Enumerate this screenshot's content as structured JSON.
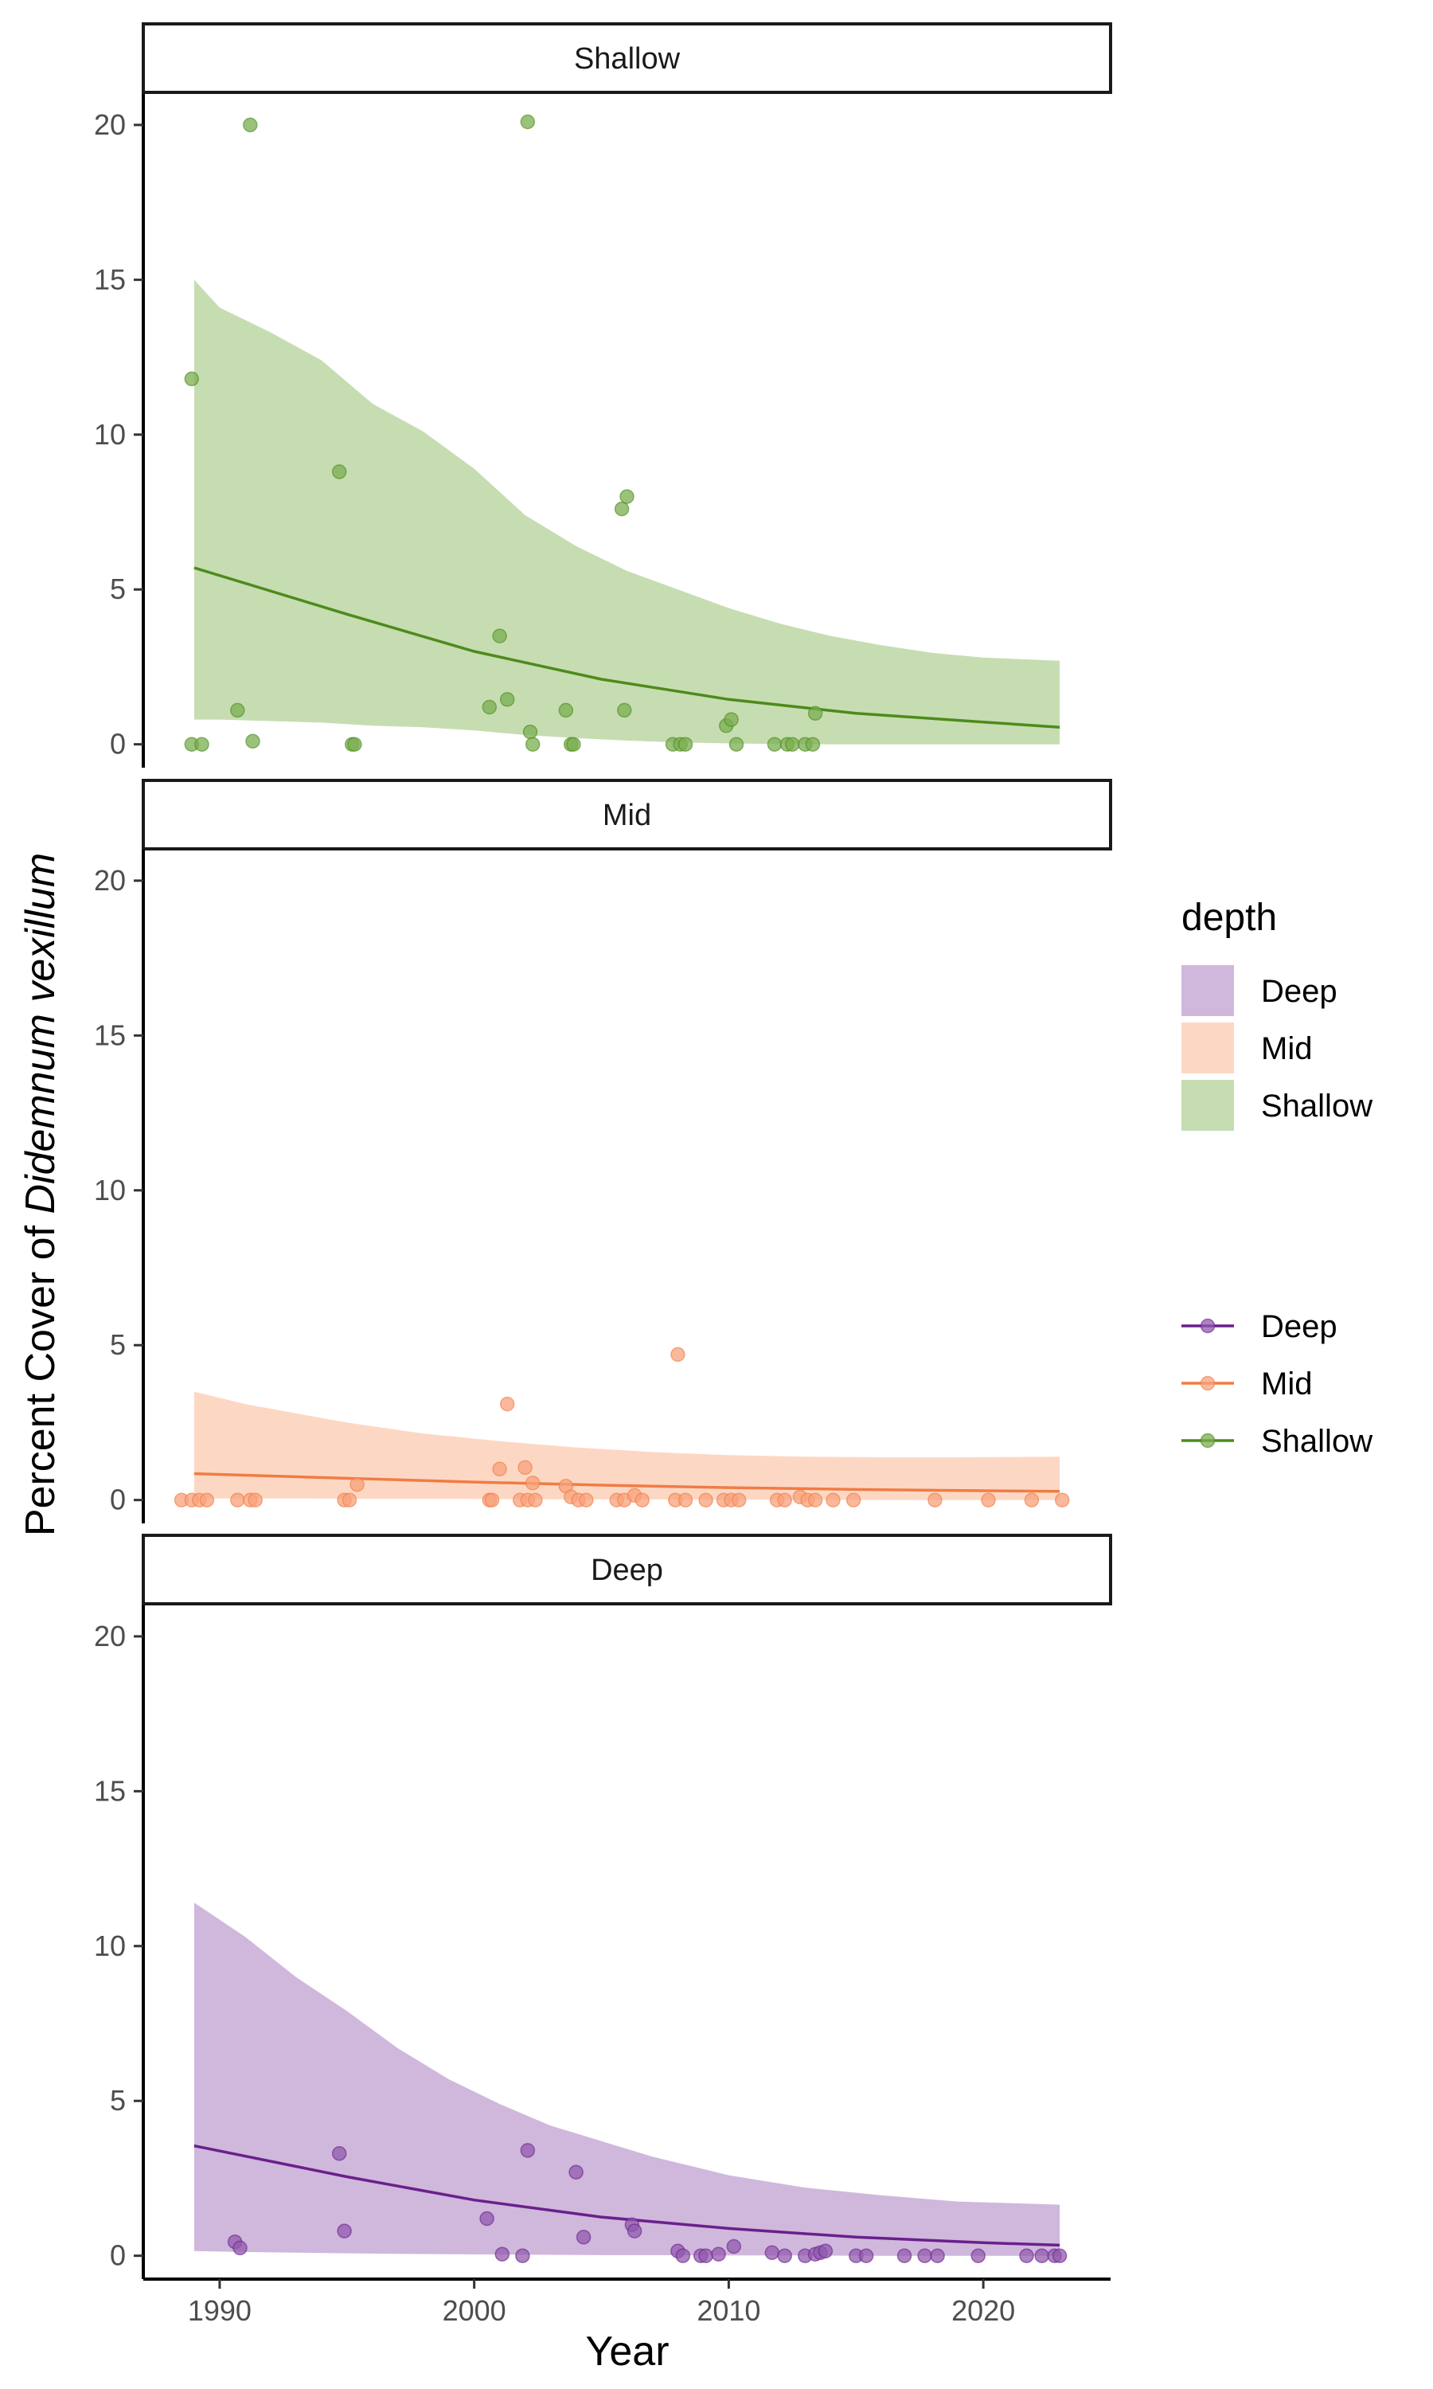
{
  "chart_data": {
    "type": "scatter",
    "xlabel": "Year",
    "ylabel_prefix": "Percent Cover of ",
    "ylabel_italic": "Didemnum vexillum",
    "x_ticks": [
      "1990",
      "2000",
      "2010",
      "2020"
    ],
    "y_ticks": [
      "0",
      "5",
      "10",
      "15",
      "20"
    ],
    "xlim": [
      1987,
      2025
    ],
    "ylim": [
      -0.6,
      21
    ],
    "colors": {
      "Shallow": {
        "line": "#4d8b1a",
        "ribbon": "#c6ddb2",
        "point": "#79ad4f"
      },
      "Mid": {
        "line": "#f07c45",
        "ribbon": "#fcd8c4",
        "point": "#f8a27b"
      },
      "Deep": {
        "line": "#6b1f8c",
        "ribbon": "#cfb8dc",
        "point": "#9159ad"
      }
    },
    "legend": {
      "title": "depth",
      "ribbon_entries": [
        "Deep",
        "Mid",
        "Shallow"
      ],
      "line_entries": [
        "Deep",
        "Mid",
        "Shallow"
      ]
    },
    "panels": [
      {
        "name": "Shallow",
        "fit": {
          "years": [
            1989,
            1995,
            2000,
            2005,
            2010,
            2015,
            2020,
            2023
          ],
          "y": [
            5.7,
            4.2,
            3.0,
            2.1,
            1.45,
            1.0,
            0.72,
            0.55
          ]
        },
        "ribbon": {
          "years": [
            1989,
            1990,
            1992,
            1994,
            1996,
            1998,
            2000,
            2002,
            2004,
            2006,
            2008,
            2010,
            2012,
            2014,
            2016,
            2018,
            2020,
            2023
          ],
          "upper": [
            15.0,
            14.1,
            13.3,
            12.4,
            11.0,
            10.1,
            8.9,
            7.4,
            6.4,
            5.6,
            5.0,
            4.4,
            3.9,
            3.5,
            3.2,
            2.95,
            2.8,
            2.7
          ],
          "lower": [
            0.8,
            0.8,
            0.75,
            0.7,
            0.6,
            0.55,
            0.45,
            0.3,
            0.2,
            0.12,
            0.06,
            0.03,
            0.01,
            0.0,
            0.0,
            0.0,
            0.0,
            0.0
          ]
        },
        "points": [
          [
            1988.9,
            11.8
          ],
          [
            1988.9,
            0.0
          ],
          [
            1989.3,
            0.0
          ],
          [
            1990.7,
            1.1
          ],
          [
            1991.2,
            20.0
          ],
          [
            1991.3,
            0.1
          ],
          [
            1994.7,
            8.8
          ],
          [
            1995.2,
            0.0
          ],
          [
            1995.3,
            0.0
          ],
          [
            2000.6,
            1.2
          ],
          [
            2001.0,
            3.5
          ],
          [
            2001.3,
            1.45
          ],
          [
            2002.1,
            20.1
          ],
          [
            2002.2,
            0.4
          ],
          [
            2002.3,
            0.0
          ],
          [
            2003.6,
            1.1
          ],
          [
            2003.8,
            0.0
          ],
          [
            2003.9,
            0.0
          ],
          [
            2005.8,
            7.6
          ],
          [
            2006.0,
            8.0
          ],
          [
            2005.9,
            1.1
          ],
          [
            2007.8,
            0.0
          ],
          [
            2008.1,
            0.0
          ],
          [
            2008.3,
            0.0
          ],
          [
            2009.9,
            0.6
          ],
          [
            2010.1,
            0.8
          ],
          [
            2010.3,
            0.0
          ],
          [
            2011.8,
            0.0
          ],
          [
            2012.3,
            0.0
          ],
          [
            2012.5,
            0.0
          ],
          [
            2013.0,
            0.0
          ],
          [
            2013.3,
            0.0
          ],
          [
            2013.4,
            1.0
          ]
        ]
      },
      {
        "name": "Mid",
        "fit": {
          "years": [
            1989,
            1995,
            2000,
            2005,
            2010,
            2015,
            2020,
            2023
          ],
          "y": [
            0.85,
            0.7,
            0.58,
            0.48,
            0.4,
            0.34,
            0.3,
            0.28
          ]
        },
        "ribbon": {
          "years": [
            1989,
            1991,
            1993,
            1995,
            1998,
            2001,
            2004,
            2007,
            2010,
            2013,
            2016,
            2019,
            2023
          ],
          "upper": [
            3.5,
            3.1,
            2.8,
            2.5,
            2.15,
            1.9,
            1.7,
            1.55,
            1.45,
            1.4,
            1.38,
            1.38,
            1.4
          ],
          "lower": [
            0.05,
            0.05,
            0.05,
            0.04,
            0.04,
            0.03,
            0.02,
            0.02,
            0.01,
            0.01,
            0.0,
            0.0,
            0.0
          ]
        },
        "points": [
          [
            1988.5,
            0.0
          ],
          [
            1988.9,
            0.0
          ],
          [
            1989.2,
            0.0
          ],
          [
            1989.5,
            0.0
          ],
          [
            1990.7,
            0.0
          ],
          [
            1991.2,
            0.0
          ],
          [
            1991.4,
            0.0
          ],
          [
            1994.9,
            0.0
          ],
          [
            1995.1,
            0.0
          ],
          [
            1995.4,
            0.5
          ],
          [
            2000.6,
            0.0
          ],
          [
            2000.7,
            0.0
          ],
          [
            2001.0,
            1.0
          ],
          [
            2001.3,
            3.1
          ],
          [
            2001.8,
            0.0
          ],
          [
            2002.0,
            1.05
          ],
          [
            2002.3,
            0.55
          ],
          [
            2002.1,
            0.0
          ],
          [
            2002.4,
            0.0
          ],
          [
            2003.6,
            0.45
          ],
          [
            2003.8,
            0.1
          ],
          [
            2004.1,
            0.0
          ],
          [
            2004.4,
            0.0
          ],
          [
            2005.6,
            0.0
          ],
          [
            2005.9,
            0.0
          ],
          [
            2006.3,
            0.15
          ],
          [
            2006.6,
            0.0
          ],
          [
            2008.0,
            4.7
          ],
          [
            2007.9,
            0.0
          ],
          [
            2008.3,
            0.0
          ],
          [
            2009.1,
            0.0
          ],
          [
            2009.8,
            0.0
          ],
          [
            2010.1,
            0.0
          ],
          [
            2010.4,
            0.0
          ],
          [
            2011.9,
            0.0
          ],
          [
            2012.2,
            0.0
          ],
          [
            2012.8,
            0.1
          ],
          [
            2013.1,
            0.0
          ],
          [
            2013.4,
            0.0
          ],
          [
            2014.1,
            0.0
          ],
          [
            2014.9,
            0.0
          ],
          [
            2018.1,
            0.0
          ],
          [
            2020.2,
            0.0
          ],
          [
            2021.9,
            0.0
          ],
          [
            2023.1,
            0.0
          ]
        ]
      },
      {
        "name": "Deep",
        "fit": {
          "years": [
            1989,
            1995,
            2000,
            2005,
            2010,
            2015,
            2020,
            2023
          ],
          "y": [
            3.55,
            2.55,
            1.8,
            1.25,
            0.88,
            0.6,
            0.42,
            0.34
          ]
        },
        "ribbon": {
          "years": [
            1989,
            1991,
            1993,
            1995,
            1997,
            1999,
            2001,
            2003,
            2005,
            2007,
            2010,
            2013,
            2016,
            2019,
            2023
          ],
          "upper": [
            11.4,
            10.3,
            9.0,
            7.9,
            6.7,
            5.7,
            4.9,
            4.2,
            3.7,
            3.2,
            2.6,
            2.2,
            1.95,
            1.75,
            1.65
          ],
          "lower": [
            0.15,
            0.12,
            0.1,
            0.08,
            0.06,
            0.05,
            0.04,
            0.03,
            0.02,
            0.02,
            0.01,
            0.01,
            0.0,
            0.0,
            0.0
          ]
        },
        "points": [
          [
            1990.6,
            0.45
          ],
          [
            1990.8,
            0.25
          ],
          [
            1994.7,
            3.3
          ],
          [
            1994.9,
            0.8
          ],
          [
            2000.5,
            1.2
          ],
          [
            2001.1,
            0.05
          ],
          [
            2001.9,
            0.0
          ],
          [
            2002.1,
            3.4
          ],
          [
            2004.0,
            2.7
          ],
          [
            2004.3,
            0.6
          ],
          [
            2006.2,
            1.0
          ],
          [
            2006.3,
            0.8
          ],
          [
            2008.0,
            0.15
          ],
          [
            2008.2,
            0.0
          ],
          [
            2008.9,
            0.0
          ],
          [
            2009.1,
            0.0
          ],
          [
            2009.6,
            0.05
          ],
          [
            2010.2,
            0.3
          ],
          [
            2011.7,
            0.1
          ],
          [
            2012.2,
            0.0
          ],
          [
            2013.0,
            0.0
          ],
          [
            2013.4,
            0.05
          ],
          [
            2013.6,
            0.1
          ],
          [
            2013.8,
            0.15
          ],
          [
            2015.0,
            0.0
          ],
          [
            2015.4,
            0.0
          ],
          [
            2016.9,
            0.0
          ],
          [
            2017.7,
            0.0
          ],
          [
            2018.2,
            0.0
          ],
          [
            2019.8,
            0.0
          ],
          [
            2021.7,
            0.0
          ],
          [
            2022.3,
            0.0
          ],
          [
            2022.8,
            0.0
          ],
          [
            2023.0,
            0.0
          ]
        ]
      }
    ]
  }
}
